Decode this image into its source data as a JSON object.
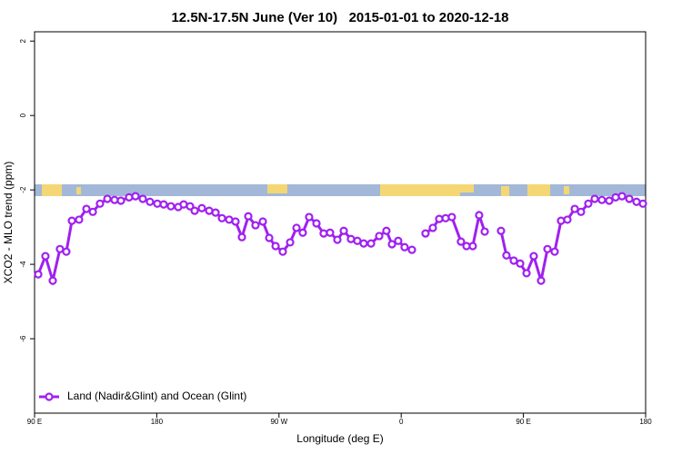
{
  "chart_data": {
    "type": "line",
    "title": "12.5N-17.5N June (Ver 10)   2015-01-01 to 2020-12-18",
    "x_label": "Longitude (deg E)",
    "y_label": "XCO2 - MLO trend (ppm)",
    "xlim": [
      90,
      540
    ],
    "ylim": [
      -8,
      2.25
    ],
    "xticks": [
      {
        "value": 90,
        "label": "90 E"
      },
      180,
      {
        "value": 270,
        "label": "90 W"
      },
      {
        "value": 360,
        "label": "0"
      },
      {
        "value": 450,
        "label": "90 E"
      },
      {
        "value": 540,
        "label": "180"
      }
    ],
    "yticks": [
      2,
      0,
      -2,
      -4,
      -6
    ],
    "legend": "bottom-left",
    "x": [
      92.7,
      98.0,
      103.4,
      108.7,
      113.4,
      117.5,
      122.8,
      128.2,
      132.9,
      138.2,
      143.6,
      148.9,
      153.6,
      159.6,
      164.3,
      169.7,
      175.0,
      180.4,
      185.1,
      190.4,
      195.8,
      199.8,
      204.5,
      207.9,
      213.2,
      218.6,
      223.3,
      228.0,
      233.3,
      238.0,
      242.7,
      247.4,
      252.7,
      258.1,
      262.8,
      267.5,
      272.8,
      278.2,
      282.9,
      287.5,
      292.2,
      297.6,
      302.9,
      307.6,
      313.0,
      317.7,
      323.0,
      327.7,
      332.4,
      337.8,
      343.8,
      349.1,
      353.2,
      357.8,
      362.5,
      367.9,
      372.6,
      377.9,
      383.3,
      388.0,
      392.7,
      397.3,
      404.0,
      408.1,
      412.7,
      417.4,
      421.5,
      427.5,
      433.5,
      437.5,
      442.9,
      447.6,
      452.3,
      457.6,
      463.0,
      467.7,
      473.0,
      477.7,
      482.4,
      487.8,
      492.4,
      497.8,
      502.5,
      507.8,
      513.2,
      517.9,
      522.6,
      528.0,
      533.3,
      538.0
    ],
    "series": [
      {
        "name": "Land (Nadir&Glint) and Ocean (Glint)",
        "color": "#a020f0",
        "values": [
          -4.27,
          -3.78,
          -4.44,
          -3.59,
          -3.66,
          -2.83,
          -2.8,
          -2.51,
          -2.59,
          -2.37,
          -2.24,
          -2.27,
          -2.29,
          -2.2,
          -2.17,
          -2.24,
          -2.32,
          -2.37,
          -2.39,
          -2.44,
          -2.46,
          -2.39,
          -2.44,
          -2.56,
          -2.49,
          -2.56,
          -2.61,
          -2.76,
          -2.8,
          -2.85,
          -3.27,
          -2.71,
          -2.95,
          -2.85,
          -3.29,
          -3.51,
          -3.66,
          -3.41,
          -3.02,
          -3.15,
          -2.73,
          -2.9,
          -3.17,
          -3.15,
          -3.34,
          -3.1,
          -3.32,
          -3.37,
          -3.44,
          -3.44,
          -3.24,
          -3.1,
          -3.46,
          -3.37,
          -3.54,
          -3.61,
          null,
          -3.17,
          -3.02,
          -2.78,
          -2.76,
          -2.73,
          -3.39,
          -3.51,
          -3.51,
          -2.68,
          -3.12,
          null,
          -3.1,
          -3.76,
          -3.9,
          -3.98,
          -4.24,
          -3.78,
          -4.44,
          -3.59,
          -3.66,
          -2.83,
          -2.8,
          -2.51,
          -2.59,
          -2.37,
          -2.24,
          -2.27,
          -2.29,
          -2.2,
          -2.17,
          -2.24,
          -2.32,
          -2.37
        ]
      }
    ]
  }
}
